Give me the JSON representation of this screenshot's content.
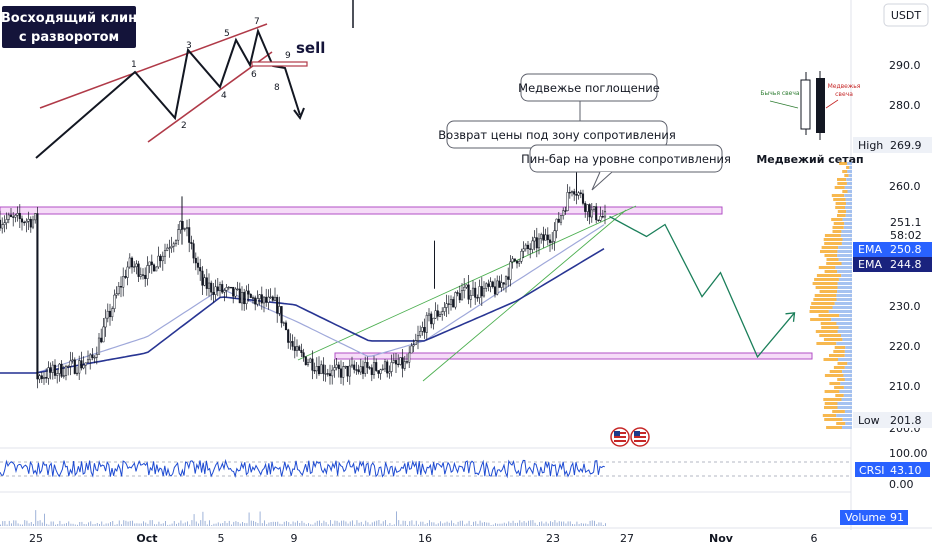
{
  "header": {
    "currency": "USDT"
  },
  "inset": {
    "title_line1": "Восходящий клин",
    "title_line2": "с разворотом",
    "wave_labels": [
      "1",
      "2",
      "3",
      "4",
      "5",
      "6",
      "7",
      "8",
      "9"
    ],
    "sell_label": "sell"
  },
  "candle_inset": {
    "bull_label": "Бычья свеча",
    "bear_label_line1": "Медвежья",
    "bear_label_line2": "свеча",
    "caption": "Медвежий сетап",
    "colors": {
      "bull_label": "#2e7d32",
      "bear_label": "#c62828"
    }
  },
  "annotations": {
    "engulfing": "Медвежье поглощение",
    "return_under_resistance": "Возврат цены под зону сопротивления",
    "pin_bar": "Пин-бар на уровне сопротивления"
  },
  "price_axis": {
    "ticks": [
      "290.0",
      "280.0",
      "260.0",
      "230.0",
      "220.0",
      "210.0",
      "200.0"
    ],
    "badges": [
      {
        "label": "High",
        "value": "269.9",
        "style": "light"
      },
      {
        "label": "",
        "value": "251.1",
        "style": "plain"
      },
      {
        "label": "",
        "value": "58:02",
        "style": "plain"
      },
      {
        "label": "EMA",
        "value": "250.8",
        "style": "blue"
      },
      {
        "label": "EMA",
        "value": "244.8",
        "style": "navy"
      },
      {
        "label": "Low",
        "value": "201.8",
        "style": "light"
      }
    ]
  },
  "crsi_axis": {
    "ticks": [
      "100.00",
      "0.00"
    ],
    "badge_label": "CRSI",
    "badge_value": "43.10"
  },
  "volume_badge": {
    "label": "Volume",
    "value": "91"
  },
  "time_axis": [
    "25",
    "Oct",
    "5",
    "9",
    "16",
    "23",
    "27",
    "Nov",
    "6"
  ],
  "colors": {
    "up_candle": "#131722",
    "down_candle": "#131722",
    "ema_fast": "#9fa8da",
    "ema_slow": "#283593",
    "zone_fill": "#f3d9f7",
    "zone_stroke": "#b24fc6",
    "wedge": "#4caf50",
    "forecast": "#1b7f5a",
    "crsi": "#1e4bd2",
    "volume_profile_up": "#f5a623",
    "volume_profile_down": "#90b4ee"
  },
  "chart_data": {
    "type": "candlestick",
    "title": "",
    "xlabel": "",
    "ylabel": "",
    "ylim": [
      200,
      295
    ],
    "x_ticks": [
      "25",
      "Oct",
      "5",
      "9",
      "16",
      "23",
      "27",
      "Nov",
      "6"
    ],
    "y_ticks": [
      200,
      210,
      220,
      230,
      260,
      280,
      290
    ],
    "daily_close_path": [
      {
        "x": "25 Sep",
        "y": 212
      },
      {
        "x": "28 Sep",
        "y": 216
      },
      {
        "x": "30 Sep",
        "y": 240
      },
      {
        "x": "1 Oct",
        "y": 238
      },
      {
        "x": "3 Oct",
        "y": 250
      },
      {
        "x": "4 Oct",
        "y": 235
      },
      {
        "x": "6 Oct",
        "y": 232
      },
      {
        "x": "8 Oct",
        "y": 230
      },
      {
        "x": "9 Oct",
        "y": 218
      },
      {
        "x": "11 Oct",
        "y": 213
      },
      {
        "x": "13 Oct",
        "y": 214
      },
      {
        "x": "15 Oct",
        "y": 215
      },
      {
        "x": "16 Oct",
        "y": 225
      },
      {
        "x": "18 Oct",
        "y": 233
      },
      {
        "x": "20 Oct",
        "y": 234
      },
      {
        "x": "21 Oct",
        "y": 242
      },
      {
        "x": "23 Oct",
        "y": 248
      },
      {
        "x": "24 Oct",
        "y": 260
      },
      {
        "x": "25 Oct",
        "y": 253
      },
      {
        "x": "26 Oct",
        "y": 251.1
      }
    ],
    "ema_fast_path": [
      {
        "x": "25 Sep",
        "y": 213
      },
      {
        "x": "1 Oct",
        "y": 222
      },
      {
        "x": "5 Oct",
        "y": 234
      },
      {
        "x": "9 Oct",
        "y": 226
      },
      {
        "x": "13 Oct",
        "y": 217
      },
      {
        "x": "16 Oct",
        "y": 221
      },
      {
        "x": "21 Oct",
        "y": 236
      },
      {
        "x": "26 Oct",
        "y": 250.8
      }
    ],
    "ema_slow_path": [
      {
        "x": "25 Sep",
        "y": 213
      },
      {
        "x": "1 Oct",
        "y": 218
      },
      {
        "x": "5 Oct",
        "y": 232
      },
      {
        "x": "9 Oct",
        "y": 230
      },
      {
        "x": "13 Oct",
        "y": 221
      },
      {
        "x": "16 Oct",
        "y": 221
      },
      {
        "x": "21 Oct",
        "y": 231
      },
      {
        "x": "26 Oct",
        "y": 244.8
      }
    ],
    "resistance_zone": [
      251.1,
      253
    ],
    "support_zone": [
      216.5,
      217.5
    ],
    "forecast_path": [
      {
        "x": "26 Oct",
        "y": 252
      },
      {
        "x": "28 Oct",
        "y": 247
      },
      {
        "x": "29 Oct",
        "y": 250
      },
      {
        "x": "31 Oct",
        "y": 232
      },
      {
        "x": "1 Nov",
        "y": 238
      },
      {
        "x": "3 Nov",
        "y": 217
      },
      {
        "x": "5 Nov",
        "y": 228
      }
    ],
    "crsi_last": 43.1,
    "volume_last": 91,
    "high": 269.9,
    "low": 201.8
  }
}
